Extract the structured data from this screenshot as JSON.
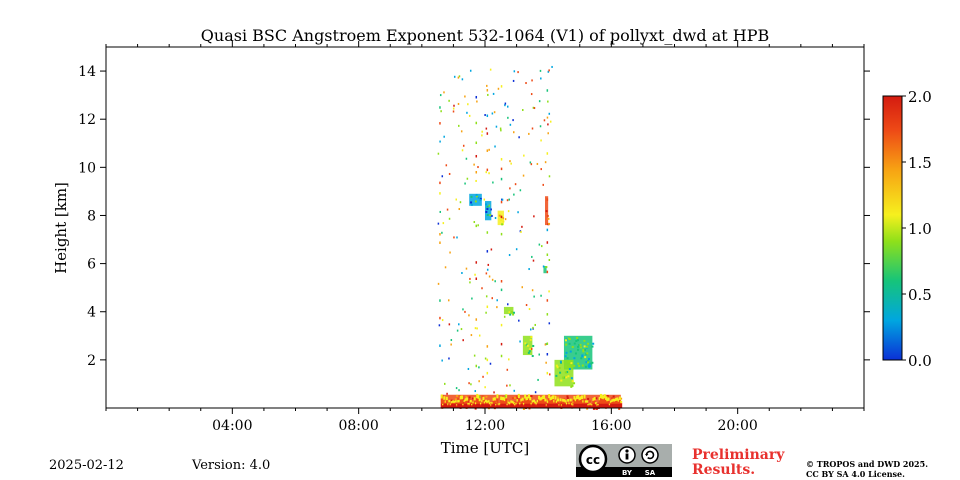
{
  "chart_data": {
    "type": "heatmap",
    "title": "Quasi BSC Angstroem Exponent 532-1064 (V1) of pollyxt_dwd at HPB",
    "xlabel": "Time [UTC]",
    "ylabel": "Height [km]",
    "xlim_hours": [
      0,
      24
    ],
    "ylim_km": [
      0,
      15
    ],
    "x_ticks": [
      {
        "hour": 4,
        "label": "04:00"
      },
      {
        "hour": 8,
        "label": "08:00"
      },
      {
        "hour": 12,
        "label": "12:00"
      },
      {
        "hour": 16,
        "label": "16:00"
      },
      {
        "hour": 20,
        "label": "20:00"
      }
    ],
    "y_ticks": [
      {
        "km": 2,
        "label": "2"
      },
      {
        "km": 4,
        "label": "4"
      },
      {
        "km": 6,
        "label": "6"
      },
      {
        "km": 8,
        "label": "8"
      },
      {
        "km": 10,
        "label": "10"
      },
      {
        "km": 12,
        "label": "12"
      },
      {
        "km": 14,
        "label": "14"
      }
    ],
    "colorbar": {
      "range": [
        0.0,
        2.0
      ],
      "ticks": [
        {
          "value": 0.0,
          "label": "0.0"
        },
        {
          "value": 0.5,
          "label": "0.5"
        },
        {
          "value": 1.0,
          "label": "1.0"
        },
        {
          "value": 1.5,
          "label": "1.5"
        },
        {
          "value": 2.0,
          "label": "2.0"
        }
      ]
    },
    "regions": [
      {
        "name": "near-surface-layer",
        "t0": 10.6,
        "t1": 16.3,
        "h0": 0.0,
        "h1": 0.55,
        "value": 1.75
      },
      {
        "name": "boundary-layer-aerosol",
        "t0": 14.5,
        "t1": 15.4,
        "h0": 1.6,
        "h1": 3.0,
        "value": 0.6
      },
      {
        "name": "boundary-layer-aerosol-lower",
        "t0": 14.2,
        "t1": 14.8,
        "h0": 0.9,
        "h1": 2.0,
        "value": 0.75
      },
      {
        "name": "aerosol-patch-13h",
        "t0": 13.2,
        "t1": 13.5,
        "h0": 2.2,
        "h1": 3.0,
        "value": 0.9
      },
      {
        "name": "cloud-8km-a",
        "t0": 11.5,
        "t1": 11.9,
        "h0": 8.4,
        "h1": 8.9,
        "value": 0.3
      },
      {
        "name": "cloud-8km-b",
        "t0": 12.0,
        "t1": 12.2,
        "h0": 7.8,
        "h1": 8.6,
        "value": 0.4
      },
      {
        "name": "cloud-8km-c",
        "t0": 12.4,
        "t1": 12.6,
        "h0": 7.6,
        "h1": 8.2,
        "value": 1.0
      },
      {
        "name": "streak-14h",
        "t0": 13.9,
        "t1": 14.0,
        "h0": 7.6,
        "h1": 8.8,
        "value": 1.6
      },
      {
        "name": "spot-6km",
        "t0": 13.85,
        "t1": 13.95,
        "h0": 5.6,
        "h1": 5.9,
        "value": 0.6
      },
      {
        "name": "spot-4km",
        "t0": 12.6,
        "t1": 12.9,
        "h0": 3.9,
        "h1": 4.2,
        "value": 0.9
      }
    ]
  },
  "footer": {
    "date": "2025-02-12",
    "version": "Version: 4.0",
    "preliminary_line1": "Preliminary",
    "preliminary_line2": "Results.",
    "copyright_line1": "© TROPOS and DWD 2025.",
    "copyright_line2": "CC BY SA 4.0 License.",
    "license_badge": {
      "cc": "cc",
      "by": "BY",
      "sa": "SA"
    }
  },
  "colors": {
    "cmap": [
      "#0b2fd6",
      "#00a6e0",
      "#16c47a",
      "#8fe01a",
      "#f6f01e",
      "#f7a313",
      "#ee4a16",
      "#d41b10"
    ],
    "preliminary": "#e8312e"
  }
}
